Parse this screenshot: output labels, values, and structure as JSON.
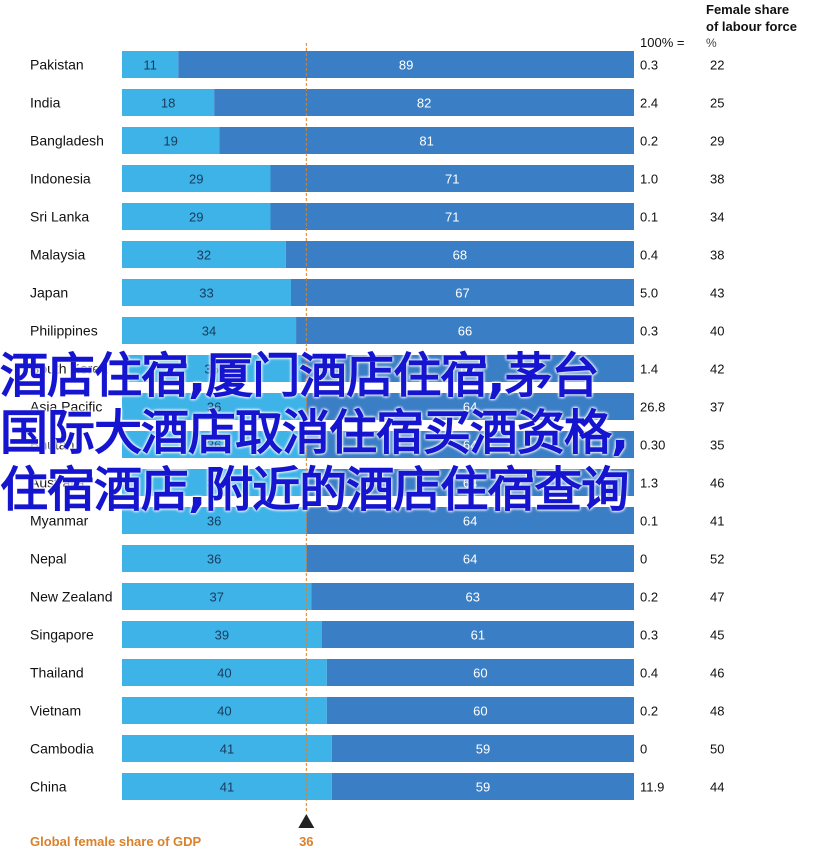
{
  "chart_data": {
    "type": "bar",
    "stacked": true,
    "orientation": "horizontal",
    "title": "",
    "xlim": [
      0,
      100
    ],
    "top_header": {
      "left_note": "100% =",
      "right_title_line1": "Female share",
      "right_title_line2": "of labour force",
      "right_unit": "%"
    },
    "categories": [
      "Pakistan",
      "India",
      "Bangladesh",
      "Indonesia",
      "Sri Lanka",
      "Malaysia",
      "Japan",
      "Philippines",
      "South Korea",
      "Asia Pacific",
      "Bhutan",
      "Australia",
      "Myanmar",
      "Nepal",
      "New Zealand",
      "Singapore",
      "Thailand",
      "Vietnam",
      "Cambodia",
      "China"
    ],
    "series": [
      {
        "values": [
          11,
          18,
          19,
          29,
          29,
          32,
          33,
          34,
          35,
          36,
          36,
          36,
          36,
          36,
          37,
          39,
          40,
          40,
          41,
          41
        ],
        "color": "#3db3e8"
      },
      {
        "values": [
          89,
          82,
          81,
          71,
          71,
          68,
          67,
          66,
          65,
          64,
          64,
          64,
          64,
          64,
          63,
          61,
          60,
          60,
          59,
          59
        ],
        "color": "#3a7ec6"
      }
    ],
    "gdp_trillions": [
      "0.3",
      "2.4",
      "0.2",
      "1.0",
      "0.1",
      "0.4",
      "5.0",
      "0.3",
      "1.4",
      "26.8",
      "0.30",
      "1.3",
      "0.1",
      "0",
      "0.2",
      "0.3",
      "0.4",
      "0.2",
      "0",
      "11.9"
    ],
    "female_labour_share": [
      "22",
      "25",
      "29",
      "38",
      "34",
      "38",
      "43",
      "40",
      "42",
      "37",
      "35",
      "46",
      "41",
      "52",
      "47",
      "45",
      "46",
      "48",
      "50",
      "44"
    ],
    "reference_line": {
      "value": 36,
      "label": "36",
      "caption": "Global female share of GDP"
    },
    "colors": {
      "share": "#3db3e8",
      "rest": "#3a7ec6",
      "reference": "#d9812b"
    }
  },
  "overlay_text": {
    "line1": "酒店住宿,厦门酒店住宿,茅台",
    "line2": "国际大酒店取消住宿买酒资格,",
    "line3": "住宿酒店,附近的酒店住宿查询"
  }
}
